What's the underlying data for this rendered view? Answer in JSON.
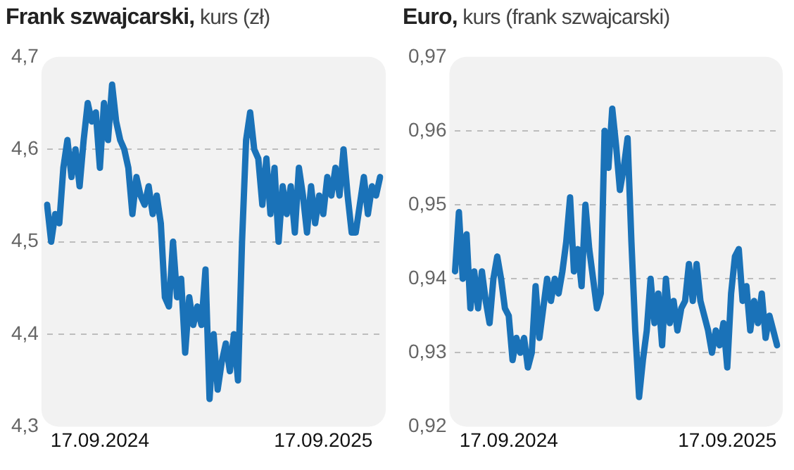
{
  "chart_data": [
    {
      "type": "line",
      "title": "Frank szwajcarski, kurs (zł)",
      "grid": "y",
      "marker": "none",
      "line_style": "solid",
      "ylim": [
        4.3,
        4.7
      ],
      "yticks": [
        {
          "value": 4.3,
          "label": "4,3"
        },
        {
          "value": 4.4,
          "label": "4,4"
        },
        {
          "value": 4.5,
          "label": "4,5"
        },
        {
          "value": 4.6,
          "label": "4,6"
        },
        {
          "value": 4.7,
          "label": "4,7"
        }
      ],
      "categories": [
        null,
        null,
        null,
        null,
        null,
        null,
        null,
        null,
        null,
        null,
        null,
        null,
        null,
        "17.09.2024",
        null,
        null,
        null,
        null,
        null,
        null,
        null,
        null,
        null,
        null,
        null,
        null,
        null,
        null,
        null,
        null,
        null,
        null,
        null,
        null,
        null,
        null,
        null,
        null,
        null,
        null,
        null,
        null,
        null,
        null,
        null,
        null,
        null,
        null,
        null,
        null,
        null,
        null,
        null,
        null,
        null,
        null,
        null,
        null,
        null,
        null,
        null,
        null,
        null,
        null,
        null,
        null,
        null,
        null,
        "17.09.2025",
        null,
        null,
        null,
        null,
        null,
        null,
        null,
        null,
        null,
        null,
        null,
        null,
        null,
        null
      ],
      "series": [
        {
          "color": "#1a72b8",
          "values": [
            4.54,
            4.5,
            4.53,
            4.52,
            4.58,
            4.61,
            4.57,
            4.6,
            4.56,
            4.61,
            4.65,
            4.63,
            4.64,
            4.58,
            4.65,
            4.61,
            4.67,
            4.63,
            4.61,
            4.6,
            4.58,
            4.53,
            4.57,
            4.55,
            4.54,
            4.56,
            4.53,
            4.55,
            4.52,
            4.44,
            4.43,
            4.5,
            4.44,
            4.46,
            4.38,
            4.44,
            4.41,
            4.43,
            4.41,
            4.47,
            4.33,
            4.4,
            4.34,
            4.37,
            4.39,
            4.36,
            4.4,
            4.35,
            4.5,
            4.61,
            4.64,
            4.6,
            4.59,
            4.54,
            4.59,
            4.53,
            4.58,
            4.5,
            4.56,
            4.53,
            4.56,
            4.51,
            4.58,
            4.55,
            4.51,
            4.56,
            4.52,
            4.55,
            4.53,
            4.57,
            4.55,
            4.58,
            4.55,
            4.6,
            4.55,
            4.51,
            4.51,
            4.54,
            4.57,
            4.53,
            4.56,
            4.55,
            4.57
          ]
        }
      ]
    },
    {
      "type": "line",
      "title": "Euro, kurs (frank szwajcarski)",
      "grid": "y",
      "marker": "none",
      "line_style": "solid",
      "ylim": [
        0.92,
        0.97
      ],
      "yticks": [
        {
          "value": 0.92,
          "label": "0,92"
        },
        {
          "value": 0.93,
          "label": "0,93"
        },
        {
          "value": 0.94,
          "label": "0,94"
        },
        {
          "value": 0.95,
          "label": "0,95"
        },
        {
          "value": 0.96,
          "label": "0,96"
        },
        {
          "value": 0.97,
          "label": "0,97"
        }
      ],
      "categories": [
        null,
        null,
        null,
        null,
        null,
        null,
        null,
        null,
        null,
        null,
        null,
        null,
        null,
        null,
        "17.09.2024",
        null,
        null,
        null,
        null,
        null,
        null,
        null,
        null,
        null,
        null,
        null,
        null,
        null,
        null,
        null,
        null,
        null,
        null,
        null,
        null,
        null,
        null,
        null,
        null,
        null,
        null,
        null,
        null,
        null,
        null,
        null,
        null,
        null,
        null,
        null,
        null,
        null,
        null,
        null,
        null,
        null,
        null,
        null,
        null,
        null,
        null,
        null,
        null,
        null,
        null,
        null,
        null,
        null,
        null,
        null,
        null,
        "17.09.2025",
        null,
        null,
        null,
        null,
        null,
        null,
        null,
        null,
        null,
        null,
        null,
        null,
        null
      ],
      "series": [
        {
          "color": "#1a72b8",
          "values": [
            0.941,
            0.949,
            0.94,
            0.946,
            0.936,
            0.941,
            0.936,
            0.941,
            0.937,
            0.934,
            0.94,
            0.943,
            0.94,
            0.936,
            0.935,
            0.929,
            0.932,
            0.93,
            0.932,
            0.928,
            0.93,
            0.939,
            0.932,
            0.936,
            0.94,
            0.937,
            0.94,
            0.938,
            0.941,
            0.945,
            0.951,
            0.941,
            0.944,
            0.939,
            0.95,
            0.944,
            0.94,
            0.936,
            0.938,
            0.96,
            0.955,
            0.963,
            0.958,
            0.952,
            0.955,
            0.959,
            0.945,
            0.933,
            0.924,
            0.929,
            0.933,
            0.94,
            0.934,
            0.938,
            0.931,
            0.94,
            0.934,
            0.937,
            0.933,
            0.936,
            0.937,
            0.942,
            0.937,
            0.942,
            0.937,
            0.935,
            0.933,
            0.93,
            0.933,
            0.931,
            0.934,
            0.928,
            0.938,
            0.943,
            0.944,
            0.937,
            0.939,
            0.933,
            0.937,
            0.934,
            0.938,
            0.932,
            0.935,
            0.933,
            0.931
          ]
        }
      ]
    }
  ]
}
